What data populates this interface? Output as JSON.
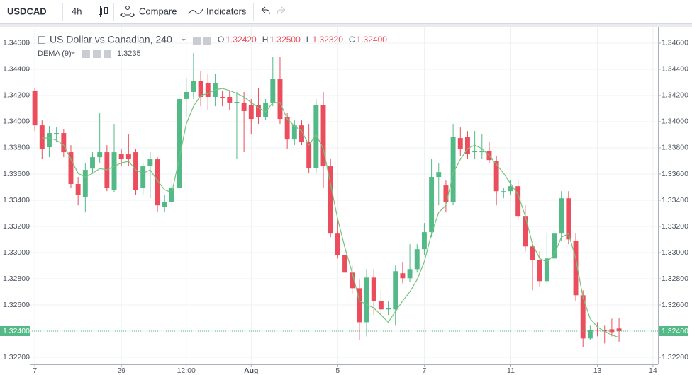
{
  "toolbar": {
    "symbol": "USDCAD",
    "interval": "4h",
    "compare": "Compare",
    "indicators": "Indicators"
  },
  "chart_data": {
    "type": "candlestick",
    "title": "US Dollar vs Canadian, 240",
    "ohlc_legend": [
      {
        "label": "O",
        "value": "1.32420"
      },
      {
        "label": "H",
        "value": "1.32500"
      },
      {
        "label": "L",
        "value": "1.32320"
      },
      {
        "label": "C",
        "value": "1.32400"
      }
    ],
    "up_color": "#53b987",
    "down_color": "#eb4d5c",
    "open": [
      1.34238,
      1.33972,
      1.33805,
      1.33902,
      1.33913,
      1.33767,
      1.33524,
      1.33426,
      1.33642,
      1.33729,
      1.33767,
      1.3348,
      1.33751,
      1.33751,
      1.33767,
      1.33496,
      1.33659,
      1.33713,
      1.3335,
      1.33388,
      1.33496,
      1.34173,
      1.34227,
      1.34308,
      1.34292,
      1.34189,
      1.34189,
      1.34189,
      1.34146,
      1.34146,
      1.34129,
      1.34129,
      1.34037,
      1.34146,
      1.34324,
      1.34037,
      1.33864,
      1.33972,
      1.33848,
      1.33648,
      1.34129,
      1.33659,
      1.33145,
      1.32982,
      1.32847,
      1.32728,
      1.32468,
      1.32809,
      1.32631,
      1.32566,
      1.32566,
      1.32842,
      1.32804,
      1.32874,
      1.33026,
      1.33156,
      1.33578,
      1.33513,
      1.33388,
      1.33875,
      1.33886,
      1.33767,
      1.33767,
      1.33778,
      1.33697,
      1.33459,
      1.33469,
      1.33507,
      1.3328,
      1.33047,
      1.32945,
      1.32782,
      1.32955,
      1.33145,
      1.33415,
      1.33091,
      1.32674,
      1.32344,
      1.32409,
      1.32409,
      1.32414,
      1.3242
    ],
    "high": [
      1.34254,
      1.3401,
      1.33967,
      1.33956,
      1.33945,
      1.33821,
      1.33578,
      1.33686,
      1.33767,
      1.34064,
      1.33821,
      1.33983,
      1.33794,
      1.33902,
      1.33794,
      1.33686,
      1.33767,
      1.33729,
      1.33442,
      1.3355,
      1.34227,
      1.34335,
      1.34524,
      1.34389,
      1.34362,
      1.34362,
      1.34238,
      1.34238,
      1.34227,
      1.34227,
      1.34173,
      1.34254,
      1.34173,
      1.34497,
      1.34497,
      1.34064,
      1.3401,
      1.3401,
      1.33983,
      1.34173,
      1.34227,
      1.33713,
      1.33253,
      1.33009,
      1.32901,
      1.32793,
      1.32874,
      1.32874,
      1.32712,
      1.32631,
      1.32901,
      1.32928,
      1.33064,
      1.33064,
      1.33226,
      1.33713,
      1.33686,
      1.3355,
      1.33983,
      1.33956,
      1.33929,
      1.33929,
      1.33902,
      1.33848,
      1.3374,
      1.33496,
      1.3355,
      1.3355,
      1.33361,
      1.33091,
      1.33009,
      1.33145,
      1.33226,
      1.33469,
      1.33469,
      1.33145,
      1.32712,
      1.32441,
      1.32468,
      1.32441,
      1.32495,
      1.325
    ],
    "low": [
      1.33929,
      1.33713,
      1.33729,
      1.33848,
      1.33729,
      1.33496,
      1.33361,
      1.33307,
      1.33605,
      1.33686,
      1.33469,
      1.33459,
      1.33659,
      1.33659,
      1.33442,
      1.33442,
      1.33415,
      1.33307,
      1.33307,
      1.3335,
      1.33469,
      1.34037,
      1.34173,
      1.34118,
      1.34091,
      1.34118,
      1.34118,
      1.34091,
      1.33713,
      1.33767,
      1.33902,
      1.33983,
      1.3401,
      1.34118,
      1.33983,
      1.33794,
      1.33821,
      1.33821,
      1.33605,
      1.33605,
      1.33496,
      1.33118,
      1.32955,
      1.32793,
      1.32685,
      1.32333,
      1.3236,
      1.32523,
      1.32523,
      1.32523,
      1.32441,
      1.32766,
      1.32777,
      1.32847,
      1.32982,
      1.33118,
      1.33361,
      1.33307,
      1.33361,
      1.3374,
      1.33713,
      1.33713,
      1.33713,
      1.33686,
      1.33361,
      1.33415,
      1.33442,
      1.33253,
      1.33009,
      1.32712,
      1.32739,
      1.32766,
      1.32928,
      1.33091,
      1.33064,
      1.32631,
      1.32279,
      1.32333,
      1.3236,
      1.32306,
      1.3236,
      1.3232
    ],
    "close": [
      1.33972,
      1.33794,
      1.33913,
      1.33913,
      1.33767,
      1.33524,
      1.33442,
      1.33632,
      1.33729,
      1.33767,
      1.33496,
      1.33767,
      1.33713,
      1.33713,
      1.3348,
      1.33659,
      1.33713,
      1.33361,
      1.33388,
      1.33496,
      1.34173,
      1.34227,
      1.34308,
      1.34189,
      1.34189,
      1.34292,
      1.34183,
      1.34146,
      1.34151,
      1.34081,
      1.34021,
      1.34037,
      1.34146,
      1.34324,
      1.34021,
      1.33864,
      1.33972,
      1.33848,
      1.33648,
      1.34129,
      1.33659,
      1.33145,
      1.32982,
      1.32847,
      1.32728,
      1.32468,
      1.32809,
      1.32631,
      1.32566,
      1.32577,
      1.32858,
      1.32804,
      1.32874,
      1.33026,
      1.33156,
      1.33578,
      1.33615,
      1.33388,
      1.33886,
      1.33794,
      1.33751,
      1.33778,
      1.33778,
      1.33707,
      1.33469,
      1.33469,
      1.33507,
      1.3328,
      1.33047,
      1.32945,
      1.32782,
      1.32955,
      1.33145,
      1.33415,
      1.33101,
      1.32674,
      1.32344,
      1.32409,
      1.32404,
      1.32398,
      1.32393,
      1.324
    ],
    "indicator": {
      "name": "DEMA (9)",
      "value_label": "1.3235",
      "color": "#73c47a",
      "values": [
        null,
        1.33875,
        1.33875,
        1.33859,
        1.33821,
        1.33713,
        1.33605,
        1.33577,
        1.33605,
        1.33642,
        1.33632,
        1.33659,
        1.33686,
        1.33697,
        1.33632,
        1.33605,
        1.33632,
        1.3355,
        1.3348,
        1.33459,
        1.33713,
        1.33983,
        1.34118,
        1.342,
        1.34216,
        1.34243,
        1.34254,
        1.34238,
        1.34216,
        1.34189,
        1.34146,
        1.34108,
        1.34075,
        1.34146,
        1.34146,
        1.34021,
        1.33967,
        1.33929,
        1.33821,
        1.33902,
        1.33794,
        1.33524,
        1.33253,
        1.33036,
        1.32847,
        1.32631,
        1.32604,
        1.32577,
        1.32523,
        1.32468,
        1.3255,
        1.32631,
        1.32701,
        1.32793,
        1.32928,
        1.33145,
        1.33307,
        1.33361,
        1.33605,
        1.33713,
        1.33794,
        1.33821,
        1.33794,
        1.3374,
        1.33675,
        1.33605,
        1.33524,
        1.33442,
        1.3328,
        1.33064,
        1.32955,
        1.32928,
        1.32982,
        1.33118,
        1.33145,
        1.32955,
        1.32658,
        1.32495,
        1.32431,
        1.32398,
        1.32371,
        1.32352
      ]
    },
    "xlim": [
      -0.7,
      86.4
    ],
    "xticks": [
      {
        "value": 0,
        "label": "7"
      },
      {
        "value": 12,
        "label": "29"
      },
      {
        "value": 21,
        "label": "12:00"
      },
      {
        "value": 30,
        "label": "Aug"
      },
      {
        "value": 42,
        "label": "5"
      },
      {
        "value": 54,
        "label": "7"
      },
      {
        "value": 66,
        "label": "11"
      },
      {
        "value": 78,
        "label": "13"
      },
      {
        "value": 85.7,
        "label": "14"
      }
    ],
    "ylim": [
      1.32146,
      1.34724
    ],
    "yticks": [
      {
        "value": 1.346,
        "label": "1.34600"
      },
      {
        "value": 1.344,
        "label": "1.34400"
      },
      {
        "value": 1.342,
        "label": "1.34200"
      },
      {
        "value": 1.34,
        "label": "1.34000"
      },
      {
        "value": 1.338,
        "label": "1.33800"
      },
      {
        "value": 1.336,
        "label": "1.33600"
      },
      {
        "value": 1.334,
        "label": "1.33400"
      },
      {
        "value": 1.332,
        "label": "1.33200"
      },
      {
        "value": 1.33,
        "label": "1.33000"
      },
      {
        "value": 1.328,
        "label": "1.32800"
      },
      {
        "value": 1.326,
        "label": "1.32600"
      },
      {
        "value": 1.324,
        "label": "1.32400"
      },
      {
        "value": 1.322,
        "label": "1.32200"
      }
    ],
    "last_price": {
      "value": 1.324,
      "label": "1.32400"
    },
    "grid": true
  }
}
